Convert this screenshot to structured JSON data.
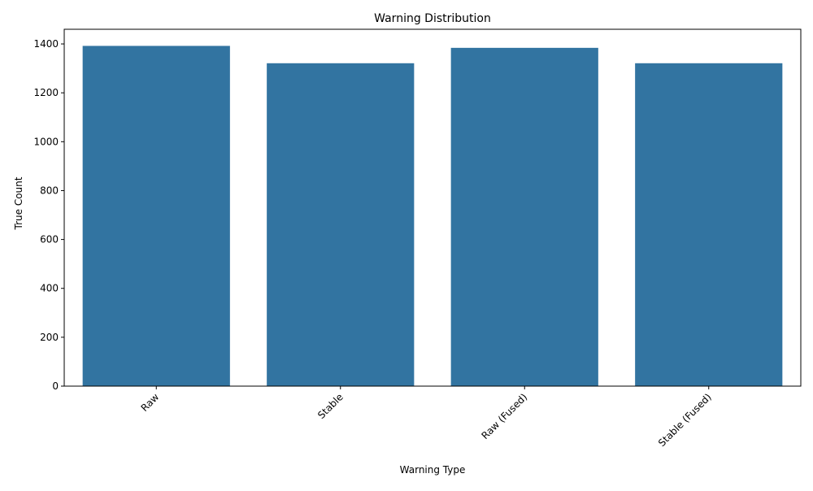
{
  "chart_data": {
    "type": "bar",
    "title": "Warning Distribution",
    "xlabel": "Warning Type",
    "ylabel": "True Count",
    "categories": [
      "Raw",
      "Stable",
      "Raw (Fused)",
      "Stable (Fused)"
    ],
    "values": [
      1392,
      1321,
      1384,
      1321
    ],
    "ylim": [
      0,
      1460
    ],
    "yticks": [
      0,
      200,
      400,
      600,
      800,
      1000,
      1200,
      1400
    ],
    "bar_color": "#3274a1",
    "grid": false,
    "legend": "none",
    "xtick_rotation_deg": 45
  }
}
